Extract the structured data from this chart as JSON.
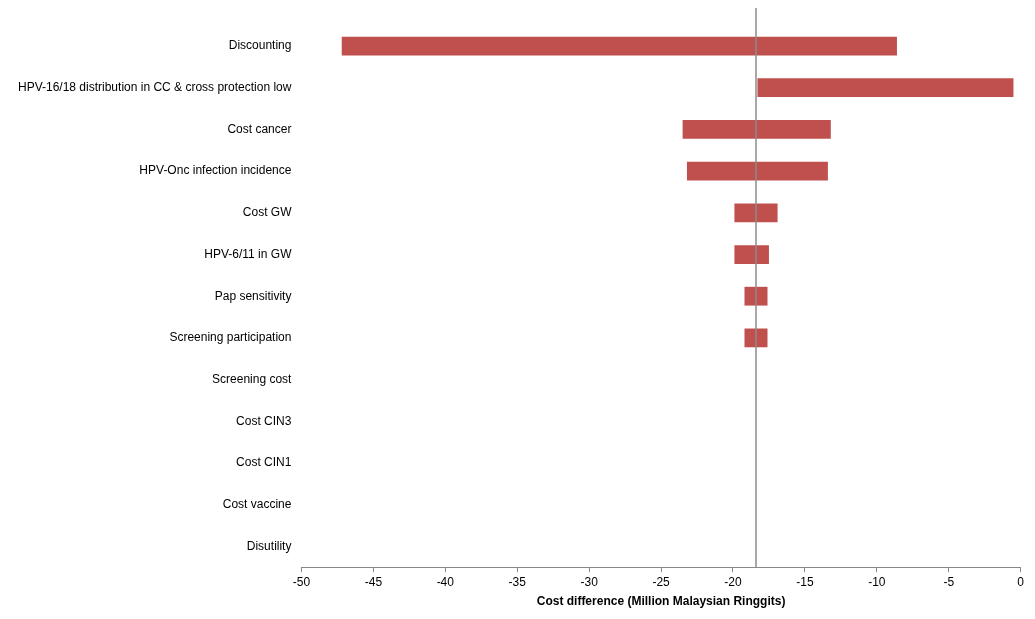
{
  "chart_data": {
    "type": "bar",
    "orientation": "horizontal",
    "xlabel": "Cost difference (Million Malaysian Ringgits)",
    "categories": [
      "Discounting",
      "HPV-16/18 distribution in CC & cross protection low",
      "Cost cancer",
      "HPV-Onc infection incidence",
      "Cost GW",
      "HPV-6/11 in GW",
      "Pap sensitivity",
      "Screening participation",
      "Screening cost",
      "Cost CIN3",
      "Cost CIN1",
      "Cost vaccine",
      "Disutility"
    ],
    "base": [
      -47.2,
      -18.3,
      -23.5,
      -23.2,
      -19.9,
      -19.9,
      -19.2,
      -19.2,
      null,
      null,
      null,
      null,
      null
    ],
    "values": [
      38.6,
      17.8,
      10.3,
      9.8,
      3.0,
      2.4,
      1.6,
      1.6,
      null,
      null,
      null,
      null,
      null
    ],
    "color": "#c0504d",
    "xlim": [
      -50,
      0
    ],
    "xticks": [
      -50,
      -45,
      -40,
      -35,
      -30,
      -25,
      -20,
      -15,
      -10,
      -5,
      0
    ],
    "ref_lines": [
      {
        "axis": "x",
        "value": -18.4,
        "color": "#8c8c8c"
      }
    ],
    "grid": false,
    "legend": false
  }
}
